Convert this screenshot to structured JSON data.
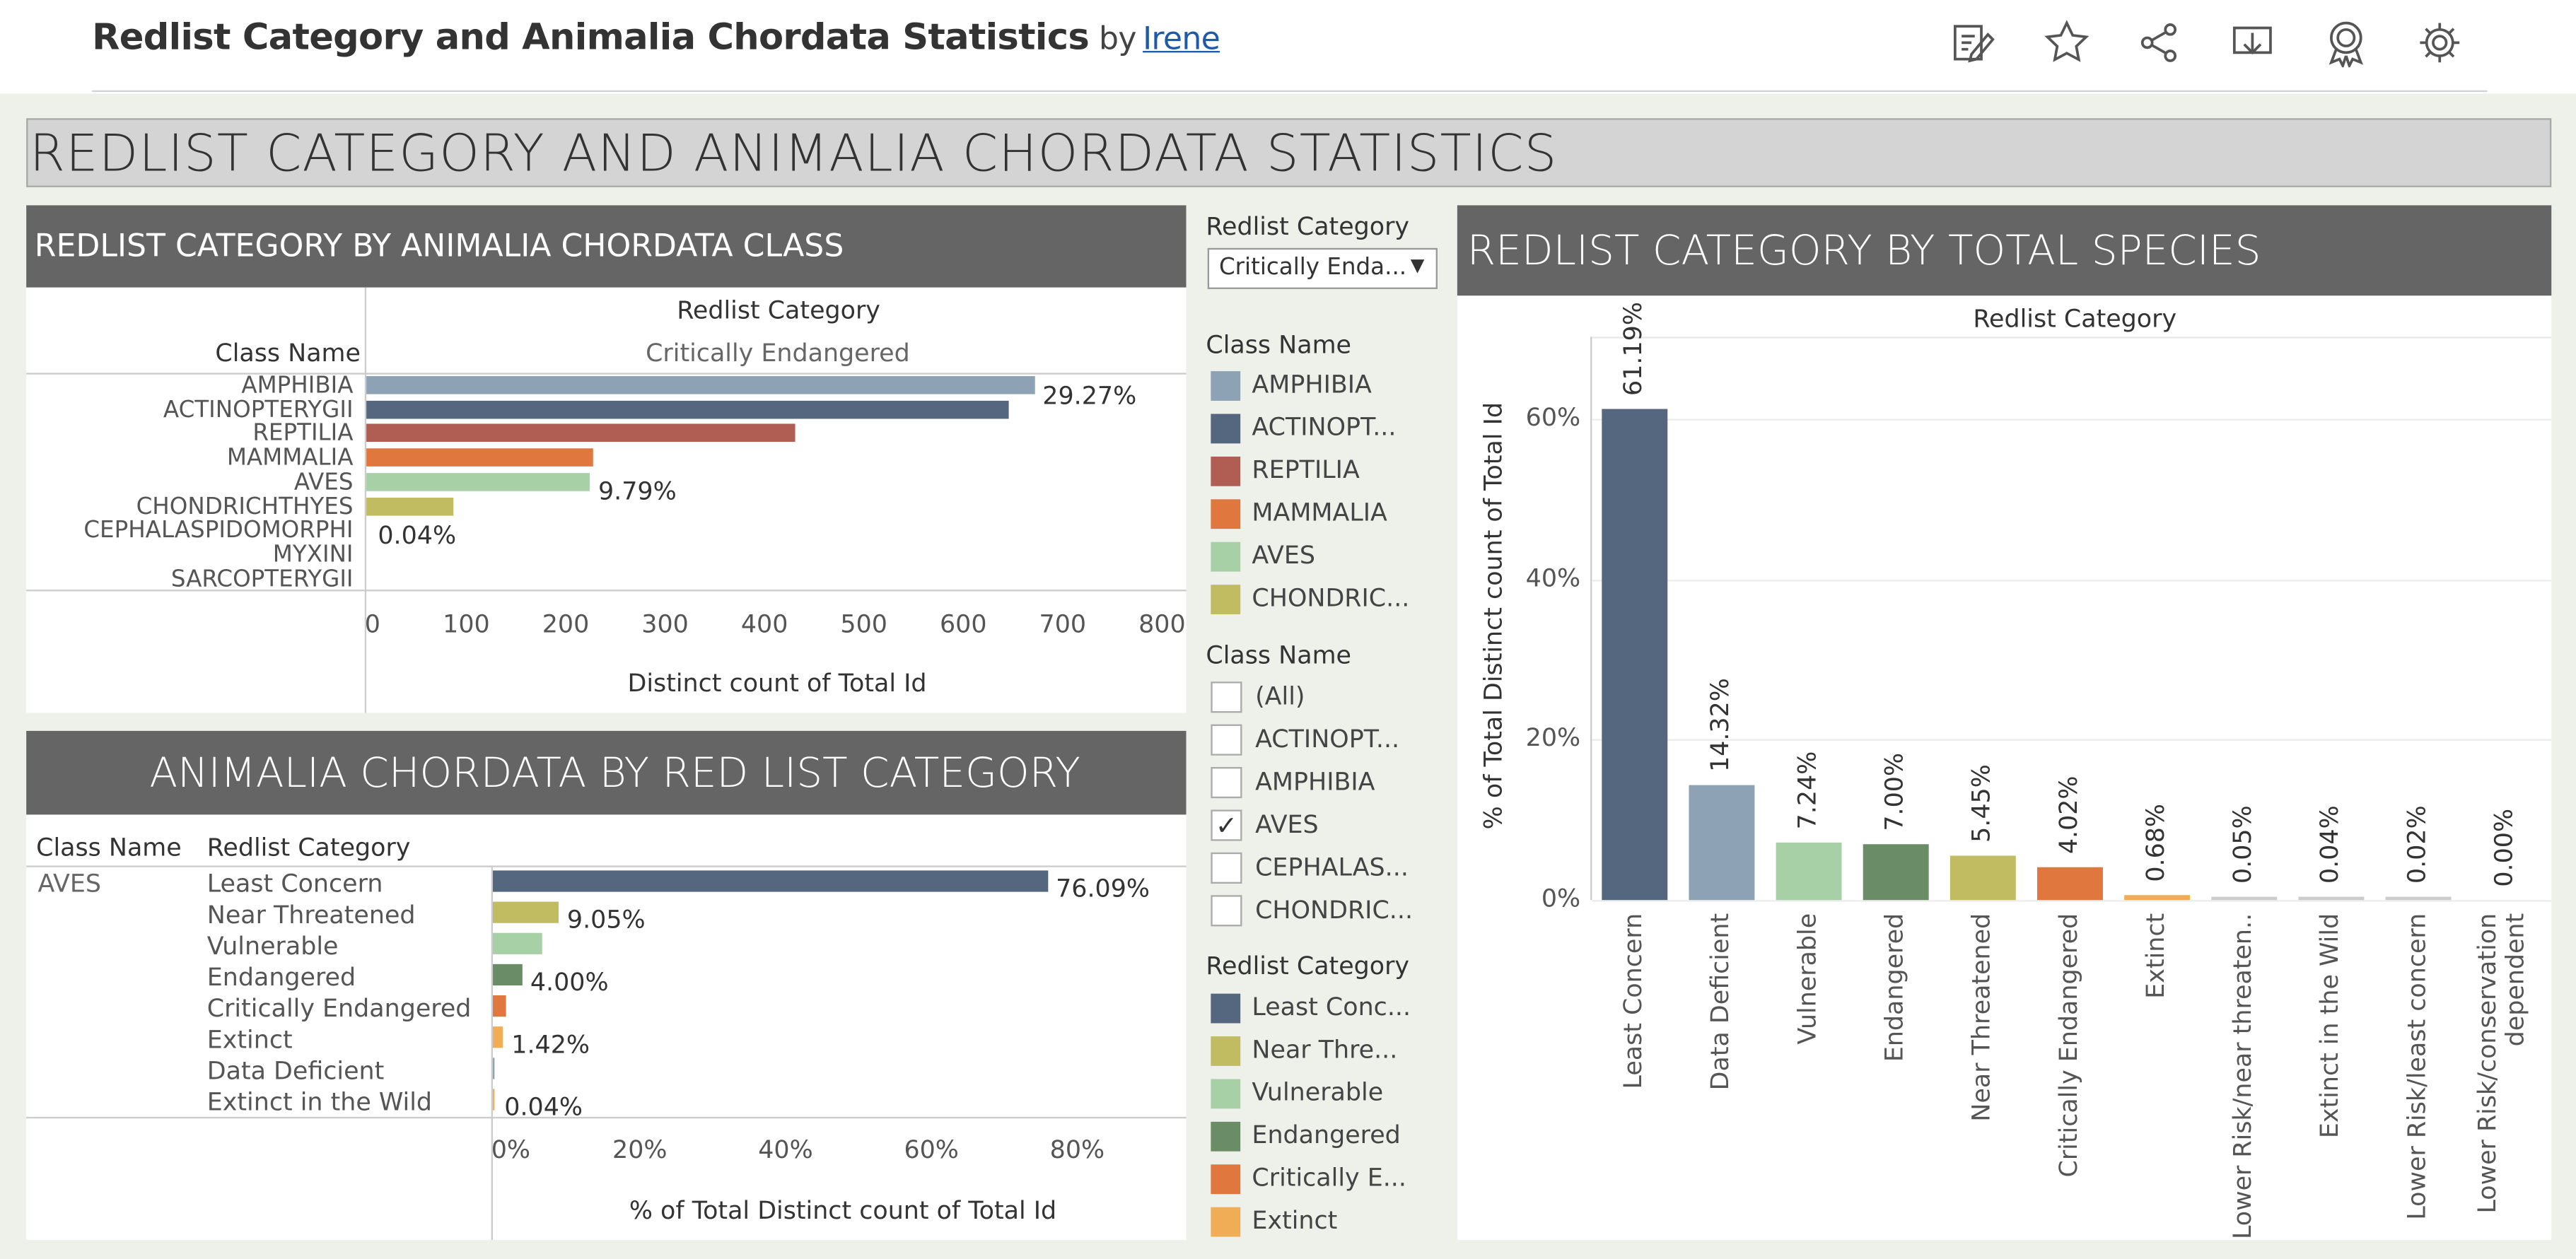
{
  "header": {
    "title": "Redlist Category and Animalia Chordata Statistics",
    "by": "by",
    "author": "Irene"
  },
  "toolbar": {
    "icons": [
      "edit-icon",
      "star-icon",
      "share-icon",
      "download-icon",
      "badge-icon",
      "settings-icon"
    ]
  },
  "banner": {
    "title": "REDLIST CATEGORY AND ANIMALIA CHORDATA STATISTICS"
  },
  "panel1": {
    "title": "REDLIST CATEGORY BY ANIMALIA CHORDATA CLASS",
    "col_header": "Redlist Category",
    "col_value": "Critically Endangered",
    "row_header": "Class Name",
    "x_label": "Distinct count of Total Id",
    "ticks": [
      "0",
      "100",
      "200",
      "300",
      "400",
      "500",
      "600",
      "700",
      "800"
    ],
    "rows": [
      "AMPHIBIA",
      "ACTINOPTERYGII",
      "REPTILIA",
      "MAMMALIA",
      "AVES",
      "CHONDRICHTHYES",
      "CEPHALASPIDOMORPHI",
      "MYXINI",
      "SARCOPTERYGII"
    ],
    "values": [
      672,
      646,
      432,
      228,
      225,
      88,
      0,
      0,
      0
    ],
    "labels": [
      "29.27%",
      "",
      "",
      "",
      "9.79%",
      "",
      "",
      "0.04%",
      ""
    ]
  },
  "panel2": {
    "title": "ANIMALIA CHORDATA  BY RED LIST CATEGORY",
    "col1": "Class Name",
    "col2": "Redlist Category",
    "class_value": "AVES",
    "x_label": "% of Total Distinct count of Total Id",
    "ticks": [
      "0%",
      "20%",
      "40%",
      "60%",
      "80%"
    ],
    "rows": [
      "Least Concern",
      "Near Threatened",
      "Vulnerable",
      "Endangered",
      "Critically Endangered",
      "Extinct",
      "Data Deficient",
      "Extinct in the Wild"
    ],
    "values": [
      76.09,
      9.05,
      6.8,
      4.0,
      1.9,
      1.42,
      0.3,
      0.04
    ],
    "labels": [
      "76.09%",
      "9.05%",
      "",
      "4.00%",
      "",
      "1.42%",
      "",
      "0.04%"
    ]
  },
  "filters": {
    "redlist_title": "Redlist Category",
    "redlist_dropdown": "Critically Enda...",
    "class_legend_title": "Class Name",
    "class_legend": [
      {
        "label": "AMPHIBIA",
        "color": "#8ea2b6"
      },
      {
        "label": "ACTINOPT...",
        "color": "#55667f"
      },
      {
        "label": "REPTILIA",
        "color": "#b05e53"
      },
      {
        "label": "MAMMALIA",
        "color": "#e0773f"
      },
      {
        "label": "AVES",
        "color": "#a7d0a6"
      },
      {
        "label": "CHONDRIC...",
        "color": "#c1bb62"
      }
    ],
    "class_filter_title": "Class Name",
    "class_filter": [
      {
        "label": "(All)",
        "checked": false
      },
      {
        "label": "ACTINOPT...",
        "checked": false
      },
      {
        "label": "AMPHIBIA",
        "checked": false
      },
      {
        "label": "AVES",
        "checked": true
      },
      {
        "label": "CEPHALAS...",
        "checked": false
      },
      {
        "label": "CHONDRIC...",
        "checked": false
      }
    ],
    "redlist_legend_title": "Redlist Category",
    "redlist_legend": [
      {
        "label": "Least Conc...",
        "color": "#55667f"
      },
      {
        "label": "Near Thre...",
        "color": "#c1bb62"
      },
      {
        "label": "Vulnerable",
        "color": "#a7d0a6"
      },
      {
        "label": "Endangered",
        "color": "#6a8c66"
      },
      {
        "label": "Critically E...",
        "color": "#e0773f"
      },
      {
        "label": "Extinct",
        "color": "#f1ad55"
      }
    ]
  },
  "panel3": {
    "title": "REDLIST CATEGORY BY TOTAL SPECIES",
    "col_header": "Redlist Category",
    "y_label": "% of Total Distinct count of Total Id",
    "y_ticks": [
      "60%",
      "40%",
      "20%",
      "0%"
    ]
  },
  "chart_data": {
    "type": "bar",
    "title": "REDLIST CATEGORY BY TOTAL SPECIES",
    "xlabel": "Redlist Category",
    "ylabel": "% of Total Distinct count of Total Id",
    "ylim": [
      0,
      70
    ],
    "categories": [
      "Least Concern",
      "Data Deficient",
      "Vulnerable",
      "Endangered",
      "Near Threatened",
      "Critically Endangered",
      "Extinct",
      "Lower Risk/near threaten..",
      "Extinct in the Wild",
      "Lower Risk/least concern",
      "Lower Risk/conservation dependent"
    ],
    "values": [
      61.19,
      14.32,
      7.24,
      7.0,
      5.45,
      4.02,
      0.68,
      0.05,
      0.04,
      0.02,
      0.0
    ],
    "value_labels": [
      "61.19%",
      "14.32%",
      "7.24%",
      "7.00%",
      "5.45%",
      "4.02%",
      "0.68%",
      "0.05%",
      "0.04%",
      "0.02%",
      "0.00%"
    ],
    "colors": [
      "#55667f",
      "#8ea2b6",
      "#a7d0a6",
      "#6a8c66",
      "#c1bb62",
      "#e0773f",
      "#f1ad55",
      "#cccccc",
      "#cccccc",
      "#cccccc",
      "#cccccc"
    ]
  }
}
